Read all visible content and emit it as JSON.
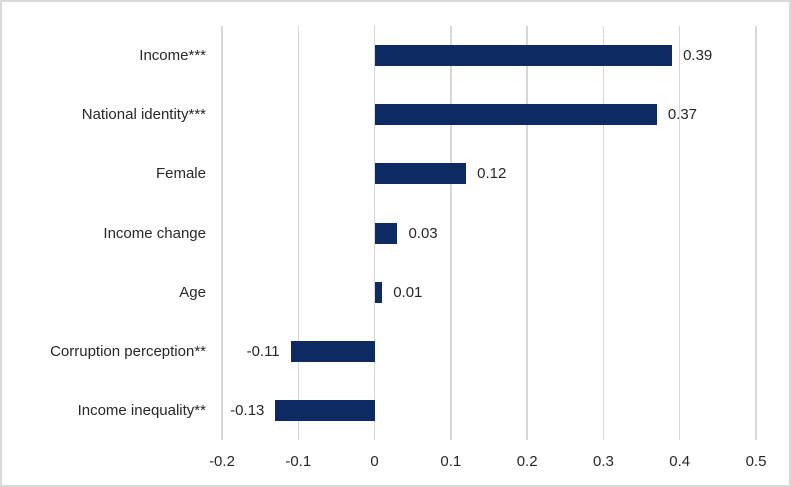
{
  "colors": {
    "bar": "#0d2a63",
    "gridline": "#d7d7d7",
    "border": "#d9d9d9",
    "text": "#282828",
    "background": "#ffffff"
  },
  "chart_data": {
    "type": "bar",
    "orientation": "horizontal",
    "title": "",
    "xlabel": "",
    "ylabel": "",
    "xlim": [
      -0.2,
      0.5
    ],
    "grid": true,
    "legend": false,
    "categories": [
      "Income***",
      "National identity***",
      "Female",
      "Income change",
      "Age",
      "Corruption perception**",
      "Income inequality**"
    ],
    "values": [
      0.39,
      0.37,
      0.12,
      0.03,
      0.01,
      -0.11,
      -0.13
    ],
    "value_labels": [
      "0.39",
      "0.37",
      "0.12",
      "0.03",
      "0.01",
      "-0.11",
      "-0.13"
    ],
    "x_ticks": [
      "-0.2",
      "-0.1",
      "0",
      "0.1",
      "0.2",
      "0.3",
      "0.4",
      "0.5"
    ]
  }
}
